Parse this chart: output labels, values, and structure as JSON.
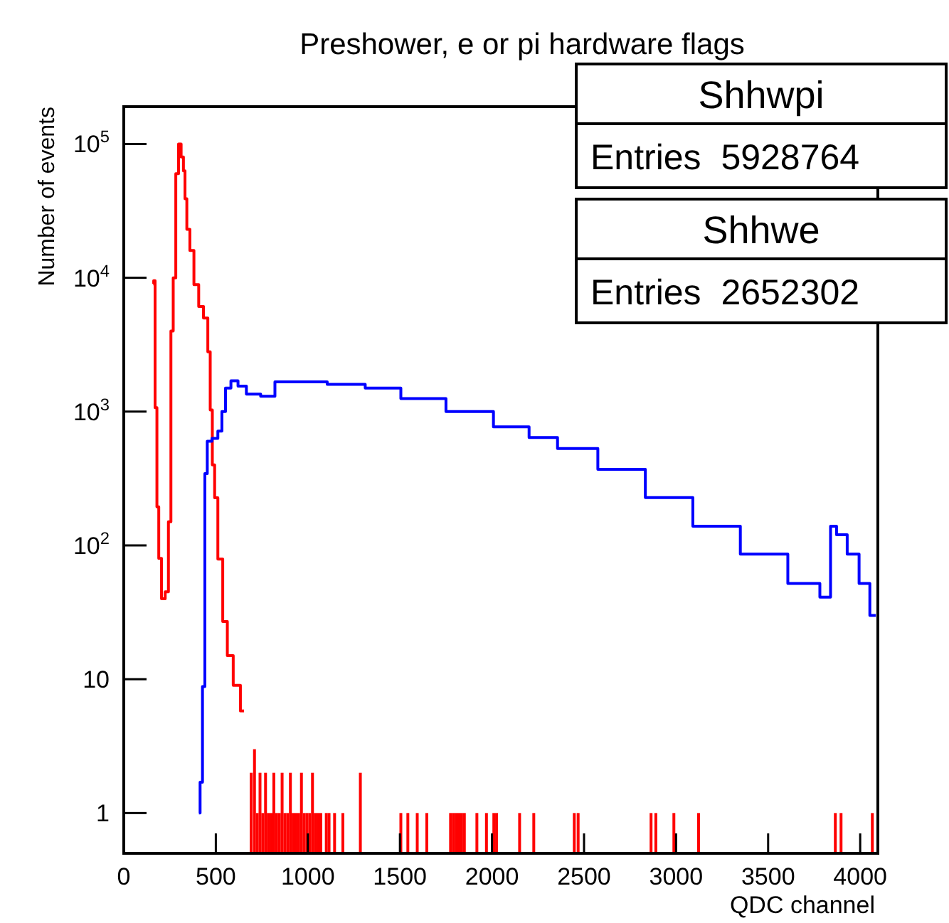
{
  "chart_data": {
    "type": "step",
    "title": "Preshower, e or pi hardware flags",
    "xlabel": "QDC channel",
    "ylabel": "Number of events",
    "log": "y",
    "grid": false,
    "xlim": [
      0,
      4096
    ],
    "xticks": [
      0,
      500,
      1000,
      1500,
      2000,
      2500,
      3000,
      3500,
      4000
    ],
    "ylim": [
      0.5,
      190000
    ],
    "yticks": [
      1,
      10,
      {
        "value": 100,
        "label": "10$^{2}$"
      },
      {
        "value": 1000,
        "label": "10$^{3}$"
      },
      {
        "value": 10000,
        "label": "10$^{4}$"
      },
      {
        "value": 100000,
        "label": "10$^{5}$"
      }
    ],
    "annotations": [
      "Shhwpi",
      "Entries  5928764",
      "Shhwe",
      "Entries  2652302"
    ],
    "series": [
      {
        "color": "#ff0000",
        "x": [
          160,
          165,
          175,
          185,
          195,
          215,
          235,
          250,
          262,
          275,
          290,
          305,
          318,
          330,
          335,
          350,
          368,
          394,
          420,
          446,
          467,
          472,
          490,
          497,
          525,
          550,
          575,
          614,
          653
        ],
        "values": [
          9000,
          9500,
          1070,
          194,
          80,
          40,
          45,
          150,
          4000,
          10000,
          60000,
          100000,
          80000,
          63000,
          39000,
          23000,
          16000,
          8900,
          6100,
          5000,
          2800,
          1030,
          400,
          227,
          79,
          27,
          15,
          9,
          5.8
        ]
      },
      {
        "type": "bar",
        "color": "#ff0000",
        "x": [
          692,
          710,
          725,
          740,
          755,
          770,
          785,
          800,
          815,
          830,
          845,
          860,
          875,
          890,
          905,
          920,
          935,
          950,
          965,
          980,
          995,
          1010,
          1025,
          1040,
          1055,
          1070,
          1100,
          1115,
          1145,
          1190,
          1285,
          1505,
          1543,
          1594,
          1646,
          1775,
          1790,
          1805,
          1820,
          1835,
          1850,
          1918,
          1970,
          2010,
          2025,
          2150,
          2227,
          2447,
          2468,
          2864,
          2890,
          2988,
          3122,
          3865,
          3896,
          4066
        ],
        "values": [
          2,
          3,
          1,
          2,
          1,
          2,
          1,
          1,
          2,
          1,
          1,
          2,
          1,
          1,
          2,
          1,
          1,
          1,
          2,
          1,
          1,
          1,
          2,
          1,
          1,
          1,
          1,
          1,
          1,
          1,
          2,
          1,
          1,
          1,
          1,
          1,
          1,
          1,
          1,
          1,
          1,
          1,
          1,
          1,
          1,
          1,
          1,
          1,
          1,
          1,
          1,
          1,
          1,
          1,
          1,
          1
        ]
      },
      {
        "color": "#0000ff",
        "x": [
          408,
          421,
          434,
          447,
          460,
          498,
          524,
          542,
          563,
          601,
          640,
          692,
          795,
          847,
          976,
          1234,
          1389,
          1621,
          1879,
          2137,
          2266,
          2446,
          2704,
          2962,
          3220,
          3478,
          3736,
          3826,
          3852,
          3891,
          3968,
          4020,
          4085
        ],
        "values": [
          1,
          1.7,
          8.8,
          344,
          600,
          630,
          715,
          1000,
          1500,
          1700,
          1550,
          1350,
          1300,
          1670,
          1670,
          1600,
          1500,
          1250,
          1000,
          770,
          640,
          530,
          370,
          228,
          139,
          86,
          52,
          41,
          139,
          120,
          86,
          52,
          30
        ]
      }
    ]
  }
}
